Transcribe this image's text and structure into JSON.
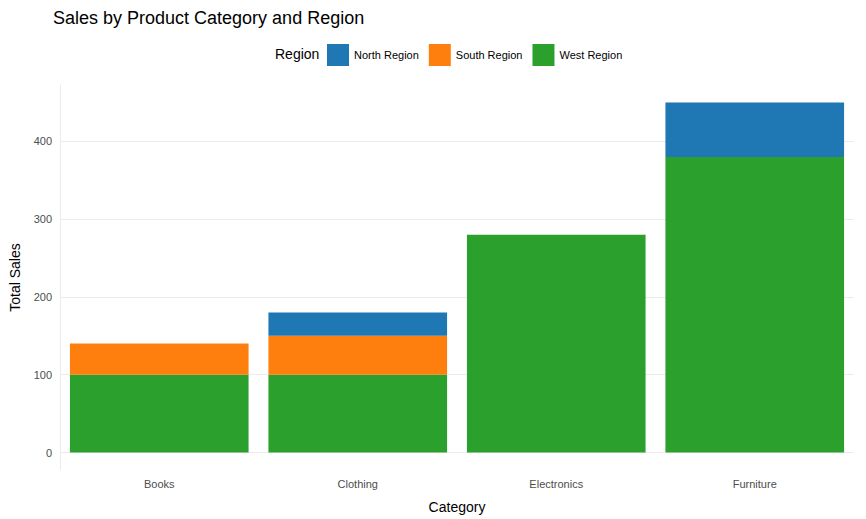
{
  "chart_data": {
    "type": "bar",
    "title": "Sales by Product Category and Region",
    "x_label": "Category",
    "y_label": "Total Sales",
    "legend_title": "Region",
    "categories": [
      "Books",
      "Clothing",
      "Electronics",
      "Furniture"
    ],
    "series": [
      {
        "name": "North Region",
        "color": "#1f77b4",
        "values": [
          null,
          30,
          null,
          70
        ]
      },
      {
        "name": "South Region",
        "color": "#ff7f0e",
        "values": [
          40,
          50,
          null,
          null
        ]
      },
      {
        "name": "West Region",
        "color": "#2ca02c",
        "values": [
          100,
          100,
          280,
          380
        ]
      }
    ],
    "stacked": true,
    "ylim": [
      -22.5,
      472.5
    ],
    "yticks": [
      0,
      100,
      200,
      300,
      400
    ],
    "grid": true,
    "legend": "top"
  }
}
